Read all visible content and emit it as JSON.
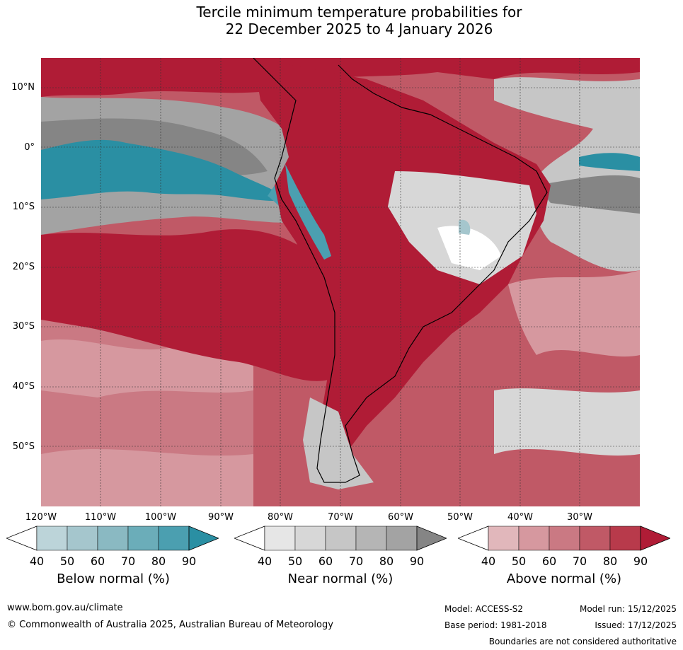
{
  "title": {
    "line1": "Tercile minimum temperature probabilities for",
    "line2": "22 December 2025 to 4 January 2026"
  },
  "map": {
    "lat_labels": [
      "10°N",
      "0°",
      "10°S",
      "20°S",
      "30°S",
      "40°S",
      "50°S"
    ],
    "lon_labels": [
      "120°W",
      "110°W",
      "100°W",
      "90°W",
      "80°W",
      "70°W",
      "60°W",
      "50°W",
      "40°W",
      "30°W"
    ]
  },
  "legends": [
    {
      "label": "Below normal (%)",
      "ticks": [
        "40",
        "50",
        "60",
        "70",
        "80",
        "90"
      ],
      "colors": [
        "#ffffff",
        "#bcd4d9",
        "#a5c6cd",
        "#8ab9c2",
        "#6badb9",
        "#4b9fb0",
        "#2a8fa3"
      ]
    },
    {
      "label": "Near normal (%)",
      "ticks": [
        "40",
        "50",
        "60",
        "70",
        "80",
        "90"
      ],
      "colors": [
        "#ffffff",
        "#e6e6e6",
        "#d7d7d7",
        "#c6c6c6",
        "#b5b5b5",
        "#a3a3a3",
        "#858585"
      ]
    },
    {
      "label": "Above normal (%)",
      "ticks": [
        "40",
        "50",
        "60",
        "70",
        "80",
        "90"
      ],
      "colors": [
        "#ffffff",
        "#e1b7bb",
        "#d6989f",
        "#ca7983",
        "#c05966",
        "#b83a4b",
        "#b01c36"
      ]
    }
  ],
  "footer": {
    "website": "www.bom.gov.au/climate",
    "copyright": "© Commonwealth of Australia 2025, Australian Bureau of Meteorology",
    "model": "Model: ACCESS-S2",
    "base_period": "Base period: 1981-2018",
    "model_run": "Model run: 15/12/2025",
    "issued": "Issued: 17/12/2025",
    "disclaimer": "Boundaries are not considered authoritative"
  }
}
